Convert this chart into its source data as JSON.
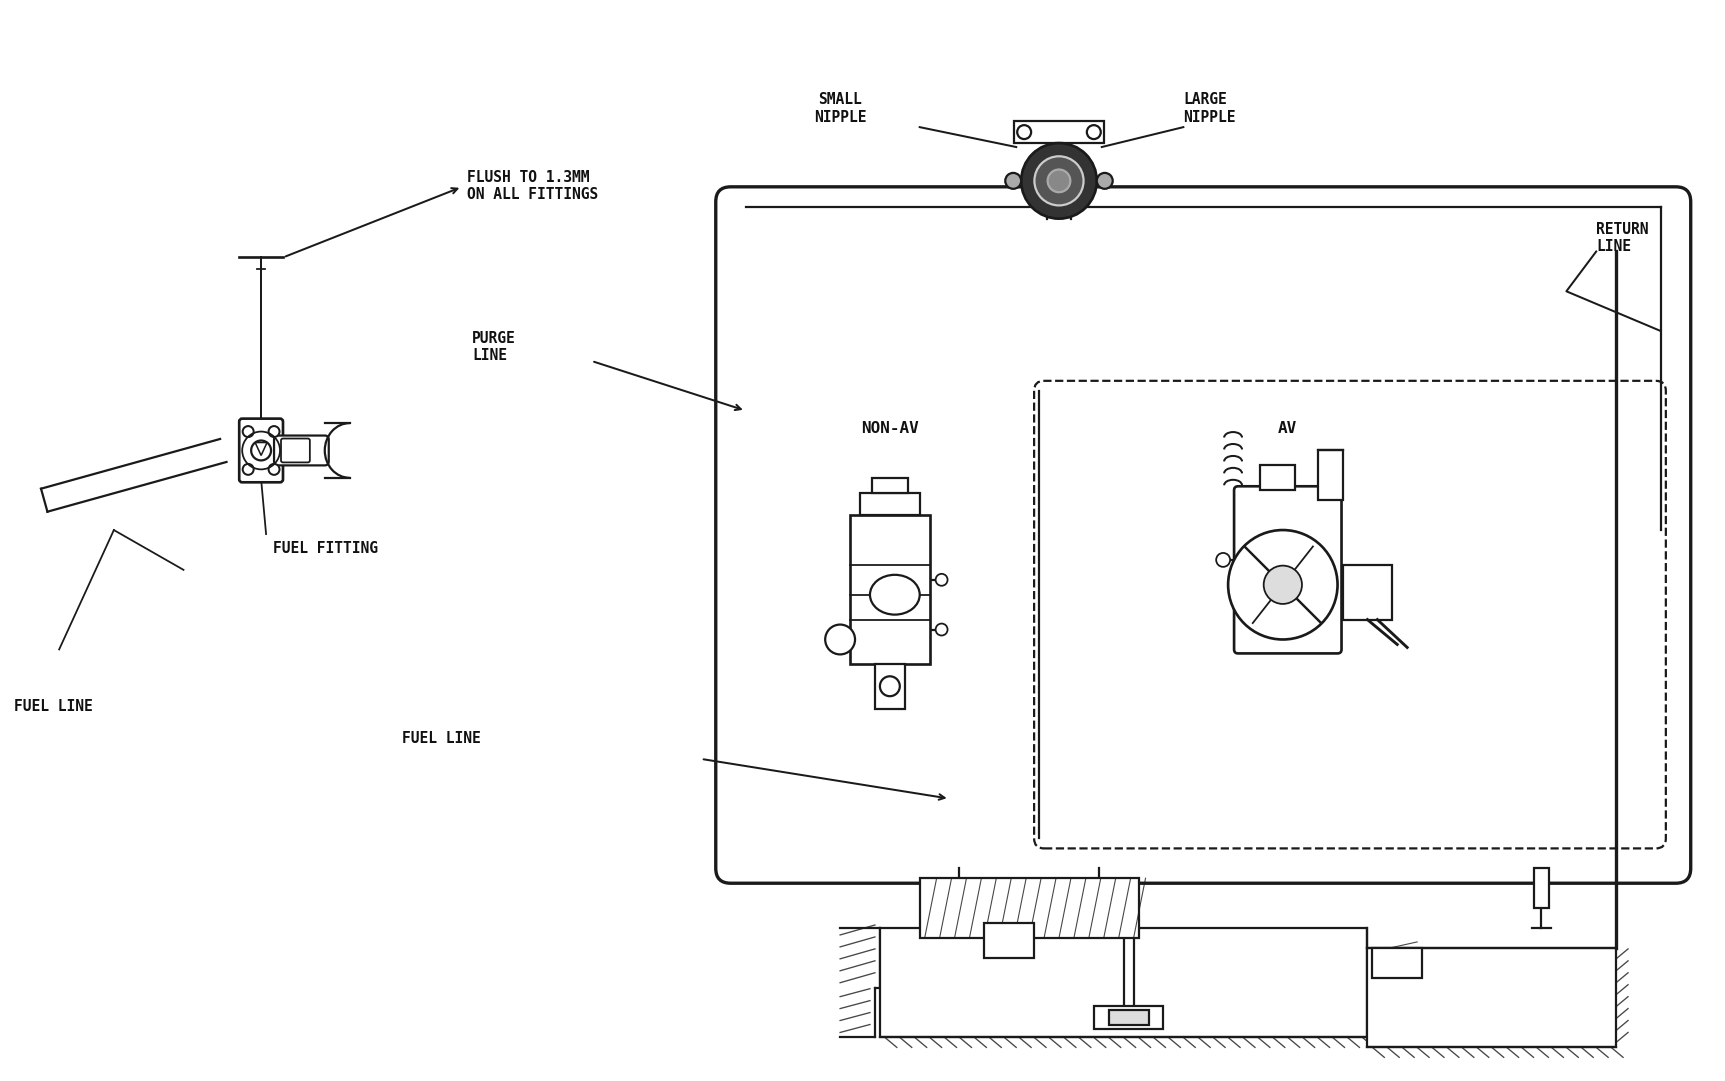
{
  "bg_color": "#ffffff",
  "line_color": "#1a1a1a",
  "text_color": "#111111",
  "labels": {
    "flush": "FLUSH TO 1.3MM\nON ALL FITTINGS",
    "purge_line": "PURGE\nLINE",
    "fuel_fitting": "FUEL FITTING",
    "fuel_line_left": "FUEL LINE",
    "small_nipple": "SMALL\nNIPPLE",
    "large_nipple": "LARGE\nNIPPLE",
    "return_line": "RETURN\nLINE",
    "non_av": "NON-AV",
    "av": "AV",
    "fuel_line_bottom": "FUEL LINE"
  },
  "font_size": 10.5,
  "lw": 1.6,
  "fig_w": 17.25,
  "fig_h": 10.81
}
